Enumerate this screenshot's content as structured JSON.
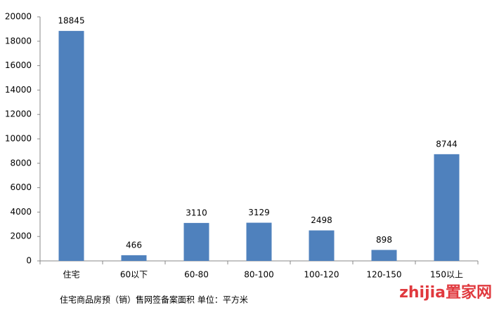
{
  "chart_data": {
    "type": "bar",
    "categories": [
      "住宅",
      "60以下",
      "60-80",
      "80-100",
      "100-120",
      "120-150",
      "150以上"
    ],
    "values": [
      18845,
      466,
      3110,
      3129,
      2498,
      898,
      8744
    ],
    "color": "#4f81bd",
    "ylim": [
      0,
      20000
    ],
    "yticks": [
      0,
      2000,
      4000,
      6000,
      8000,
      10000,
      12000,
      14000,
      16000,
      18000,
      20000
    ],
    "grid": false,
    "note": "住宅商品房预（销）售网签备案面积 单位：平方米",
    "watermark": "zhijia置家网"
  }
}
